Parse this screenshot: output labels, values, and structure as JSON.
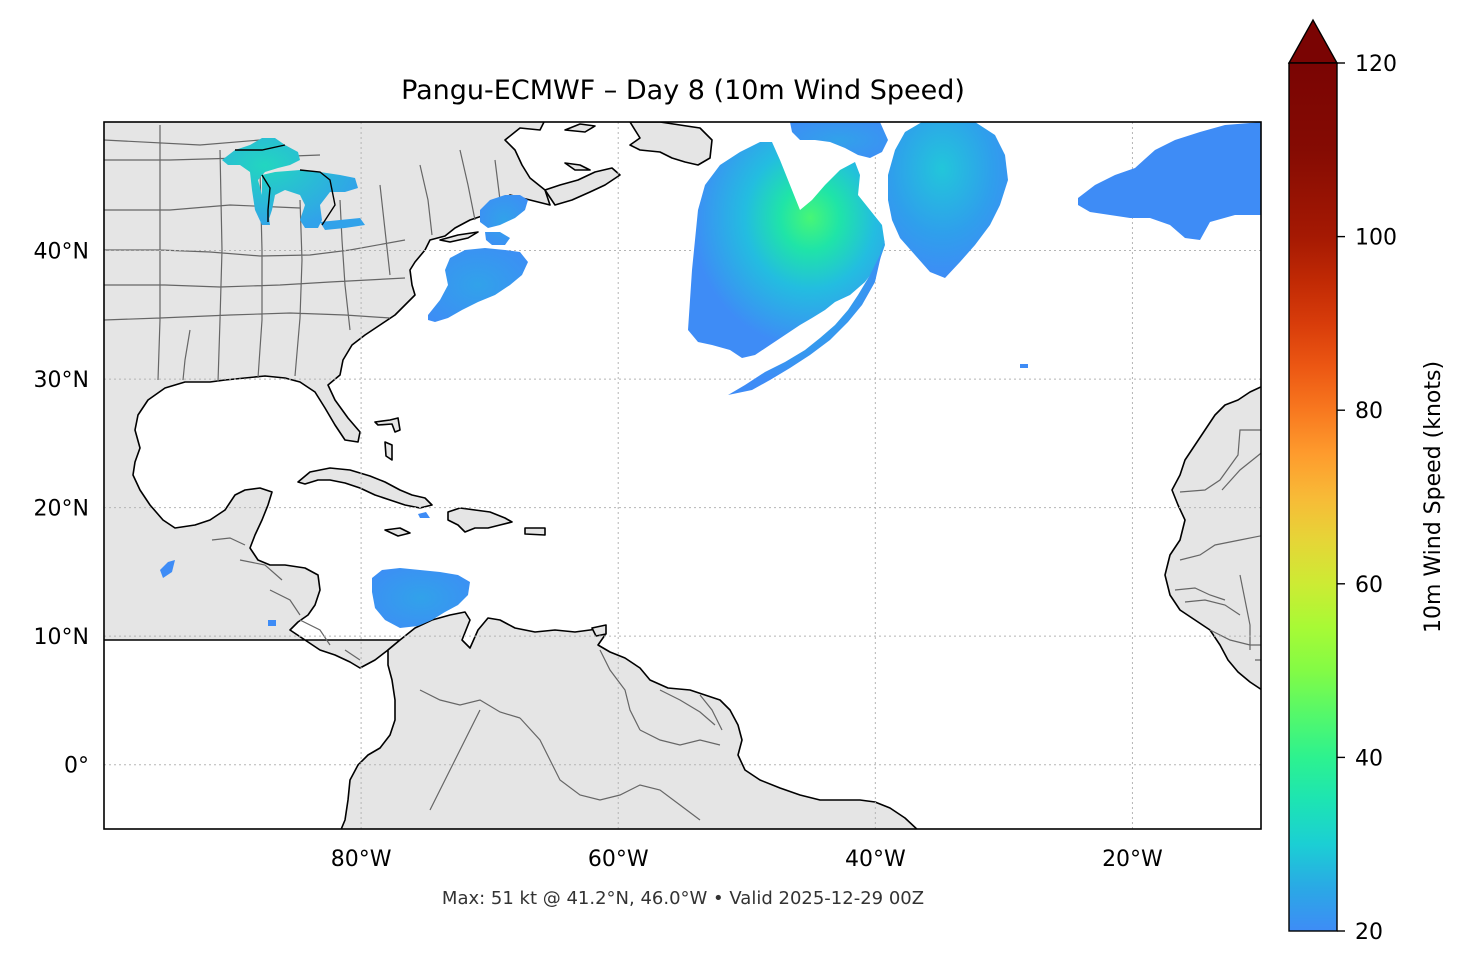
{
  "title": "Pangu-ECMWF – Day 8 (10m Wind Speed)",
  "footer": "Max: 51 kt @ 41.2°N, 46.0°W • Valid 2025-12-29 00Z",
  "map": {
    "extent": {
      "lon_min": -100,
      "lon_max": -10,
      "lat_min": -5,
      "lat_max": 50
    },
    "land_color": "#e5e5e5",
    "ocean_color": "#ffffff",
    "coastline_color": "#000000",
    "border_color": "#666666",
    "gridlines": true,
    "lon_ticks": [
      {
        "value": -80,
        "label": "80°W"
      },
      {
        "value": -60,
        "label": "60°W"
      },
      {
        "value": -40,
        "label": "40°W"
      },
      {
        "value": -20,
        "label": "20°W"
      }
    ],
    "lat_ticks": [
      {
        "value": 40,
        "label": "40°N"
      },
      {
        "value": 30,
        "label": "30°N"
      },
      {
        "value": 20,
        "label": "20°N"
      },
      {
        "value": 10,
        "label": "10°N"
      },
      {
        "value": 0,
        "label": "0°"
      }
    ]
  },
  "colorbar": {
    "label": "10m Wind Speed (knots)",
    "min": 20,
    "max": 120,
    "extend": "max",
    "colormap": "turbo",
    "ticks": [
      {
        "value": 20,
        "label": "20"
      },
      {
        "value": 40,
        "label": "40"
      },
      {
        "value": 60,
        "label": "60"
      },
      {
        "value": 80,
        "label": "80"
      },
      {
        "value": 100,
        "label": "100"
      },
      {
        "value": 120,
        "label": "120"
      }
    ],
    "stops": [
      {
        "value": 20,
        "color": "#3e8cf6"
      },
      {
        "value": 25,
        "color": "#2aa9e5"
      },
      {
        "value": 30,
        "color": "#1bcfd4"
      },
      {
        "value": 35,
        "color": "#1de4b3"
      },
      {
        "value": 40,
        "color": "#2df28f"
      },
      {
        "value": 45,
        "color": "#55f86a"
      },
      {
        "value": 50,
        "color": "#83fb45"
      },
      {
        "value": 55,
        "color": "#a8fa35"
      },
      {
        "value": 60,
        "color": "#cdeb34"
      },
      {
        "value": 65,
        "color": "#e6d537"
      },
      {
        "value": 70,
        "color": "#f8ba37"
      },
      {
        "value": 75,
        "color": "#fe9b2d"
      },
      {
        "value": 80,
        "color": "#f8781f"
      },
      {
        "value": 85,
        "color": "#ec5713"
      },
      {
        "value": 90,
        "color": "#d83c0a"
      },
      {
        "value": 95,
        "color": "#c02904"
      },
      {
        "value": 100,
        "color": "#a51903"
      },
      {
        "value": 110,
        "color": "#850b03"
      },
      {
        "value": 120,
        "color": "#7a0403"
      }
    ]
  },
  "wind_areas": [
    {
      "name": "Lake Superior / Michigan band",
      "peak_kt": 28
    },
    {
      "name": "Off New England / Nova Scotia",
      "peak_kt": 26
    },
    {
      "name": "Mid-Atlantic offshore",
      "peak_kt": 27
    },
    {
      "name": "Central North Atlantic storm",
      "peak_kt": 51
    },
    {
      "name": "Trailing front band",
      "peak_kt": 30
    },
    {
      "name": "Northeast Atlantic east lobe",
      "peak_kt": 30
    },
    {
      "name": "Eastern Atlantic",
      "peak_kt": 24
    },
    {
      "name": "Caribbean Sea",
      "peak_kt": 24
    },
    {
      "name": "Gulf of Mexico small patch",
      "peak_kt": 21
    }
  ],
  "max_point": {
    "lat": 41.2,
    "lon": -46.0,
    "speed_kt": 51
  }
}
